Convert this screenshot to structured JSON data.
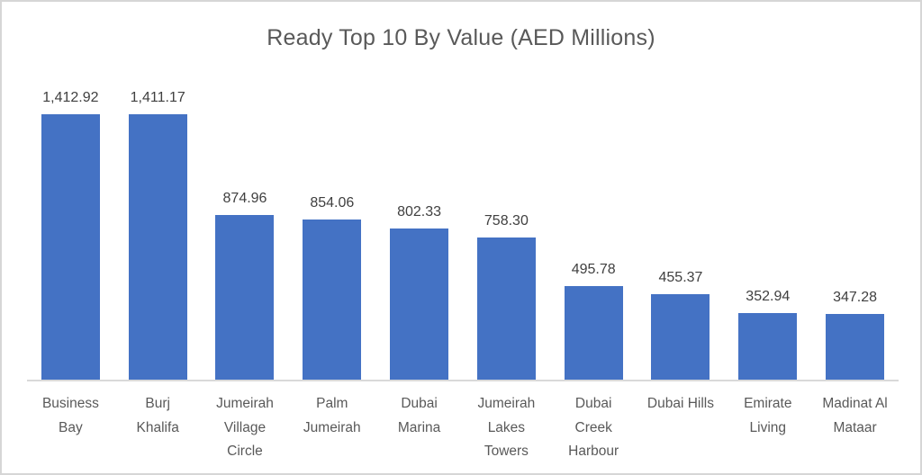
{
  "chart_data": {
    "type": "bar",
    "title": "Ready Top 10 By Value (AED Millions)",
    "categories": [
      "Business Bay",
      "Burj Khalifa",
      "Jumeirah Village Circle",
      "Palm Jumeirah",
      "Dubai Marina",
      "Jumeirah Lakes Towers",
      "Dubai Creek Harbour",
      "Dubai Hills",
      "Emirate Living",
      "Madinat Al Mataar"
    ],
    "category_lines": [
      [
        "Business",
        "Bay"
      ],
      [
        "Burj",
        "Khalifa"
      ],
      [
        "Jumeirah",
        "Village",
        "Circle"
      ],
      [
        "Palm",
        "Jumeirah"
      ],
      [
        "Dubai",
        "Marina"
      ],
      [
        "Jumeirah",
        "Lakes",
        "Towers"
      ],
      [
        "Dubai",
        "Creek",
        "Harbour"
      ],
      [
        "Dubai Hills"
      ],
      [
        "Emirate",
        "Living"
      ],
      [
        "Madinat Al",
        "Mataar"
      ]
    ],
    "values": [
      1412.92,
      1411.17,
      874.96,
      854.06,
      802.33,
      758.3,
      495.78,
      455.37,
      352.94,
      347.28
    ],
    "value_labels": [
      "1,412.92",
      "1,411.17",
      "874.96",
      "854.06",
      "802.33",
      "758.30",
      "495.78",
      "455.37",
      "352.94",
      "347.28"
    ],
    "xlabel": "",
    "ylabel": "",
    "ylim": [
      0,
      1500
    ],
    "grid": false,
    "legend": false,
    "bar_color": "#4472C4",
    "axis_line_color": "#D9D9D9",
    "title_color": "#595959",
    "value_label_color": "#404040",
    "category_label_color": "#595959"
  }
}
